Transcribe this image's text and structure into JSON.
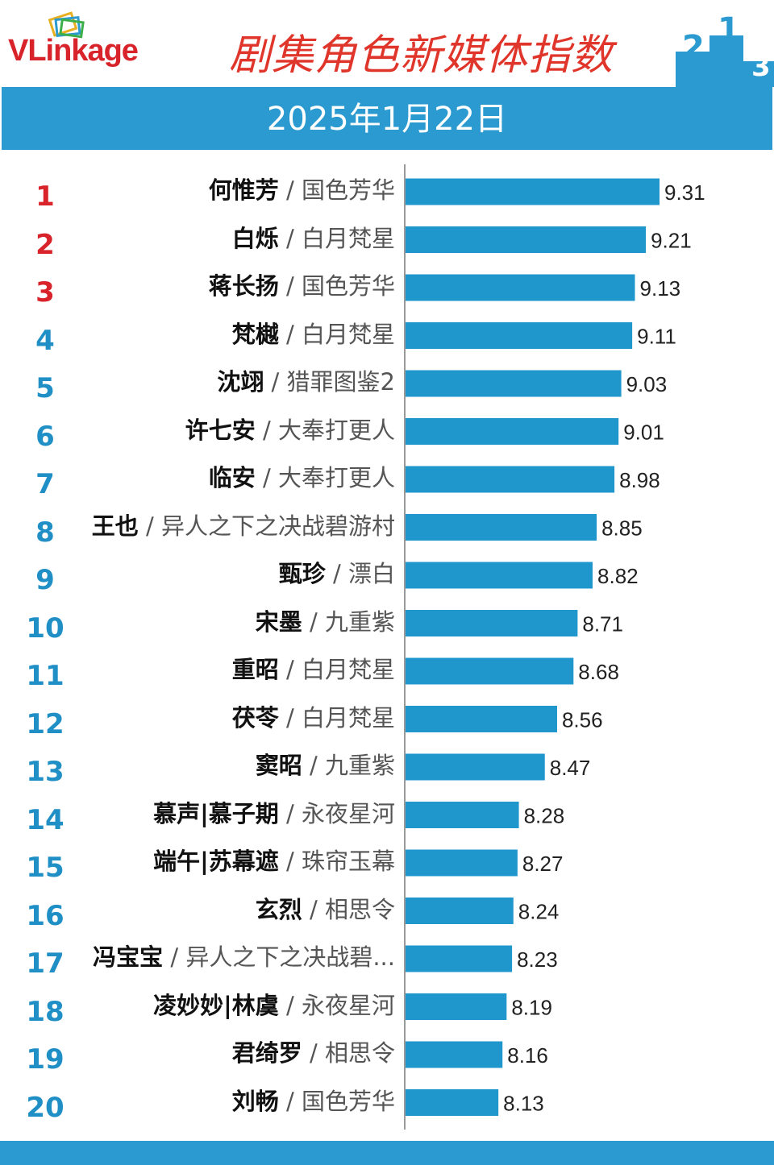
{
  "header": {
    "logo_text": "VLinkage",
    "title": "剧集角色新媒体指数",
    "date": "2025年1月22日",
    "colors": {
      "title": "#e0352b",
      "logo": "#d8232a",
      "band": "#2a9ad0",
      "bar": "#1f97cc",
      "rank_top3": "#d8232a",
      "rank_other": "#1f8fc6"
    }
  },
  "chart_data": {
    "type": "bar",
    "orientation": "horizontal",
    "xlim": [
      7.45,
      9.31
    ],
    "categories": [
      {
        "rank": "1",
        "name": "何惟芳",
        "show": "国色芳华"
      },
      {
        "rank": "2",
        "name": "白烁",
        "show": "白月梵星"
      },
      {
        "rank": "3",
        "name": "蒋长扬",
        "show": "国色芳华"
      },
      {
        "rank": "4",
        "name": "梵樾",
        "show": "白月梵星"
      },
      {
        "rank": "5",
        "name": "沈翊",
        "show": "猎罪图鉴2"
      },
      {
        "rank": "6",
        "name": "许七安",
        "show": "大奉打更人"
      },
      {
        "rank": "7",
        "name": "临安",
        "show": "大奉打更人"
      },
      {
        "rank": "8",
        "name": "王也",
        "show": "异人之下之决战碧游村"
      },
      {
        "rank": "9",
        "name": "甄珍",
        "show": "漂白"
      },
      {
        "rank": "10",
        "name": "宋墨",
        "show": "九重紫"
      },
      {
        "rank": "11",
        "name": "重昭",
        "show": "白月梵星"
      },
      {
        "rank": "12",
        "name": "茯苓",
        "show": "白月梵星"
      },
      {
        "rank": "13",
        "name": "窦昭",
        "show": "九重紫"
      },
      {
        "rank": "14",
        "name": "慕声|慕子期",
        "show": "永夜星河"
      },
      {
        "rank": "15",
        "name": "端午|苏幕遮",
        "show": "珠帘玉幕"
      },
      {
        "rank": "16",
        "name": "玄烈",
        "show": "相思令"
      },
      {
        "rank": "17",
        "name": "冯宝宝",
        "show": "异人之下之决战碧..."
      },
      {
        "rank": "18",
        "name": "凌妙妙|林虞",
        "show": "永夜星河"
      },
      {
        "rank": "19",
        "name": "君绮罗",
        "show": "相思令"
      },
      {
        "rank": "20",
        "name": "刘畅",
        "show": "国色芳华"
      }
    ],
    "values": [
      9.31,
      9.21,
      9.13,
      9.11,
      9.03,
      9.01,
      8.98,
      8.85,
      8.82,
      8.71,
      8.68,
      8.56,
      8.47,
      8.28,
      8.27,
      8.24,
      8.23,
      8.19,
      8.16,
      8.13
    ],
    "value_labels": [
      "9.31",
      "9.21",
      "9.13",
      "9.11",
      "9.03",
      "9.01",
      "8.98",
      "8.85",
      "8.82",
      "8.71",
      "8.68",
      "8.56",
      "8.47",
      "8.28",
      "8.27",
      "8.24",
      "8.23",
      "8.19",
      "8.16",
      "8.13"
    ],
    "separator": "/",
    "grid": false,
    "legend": "none"
  }
}
